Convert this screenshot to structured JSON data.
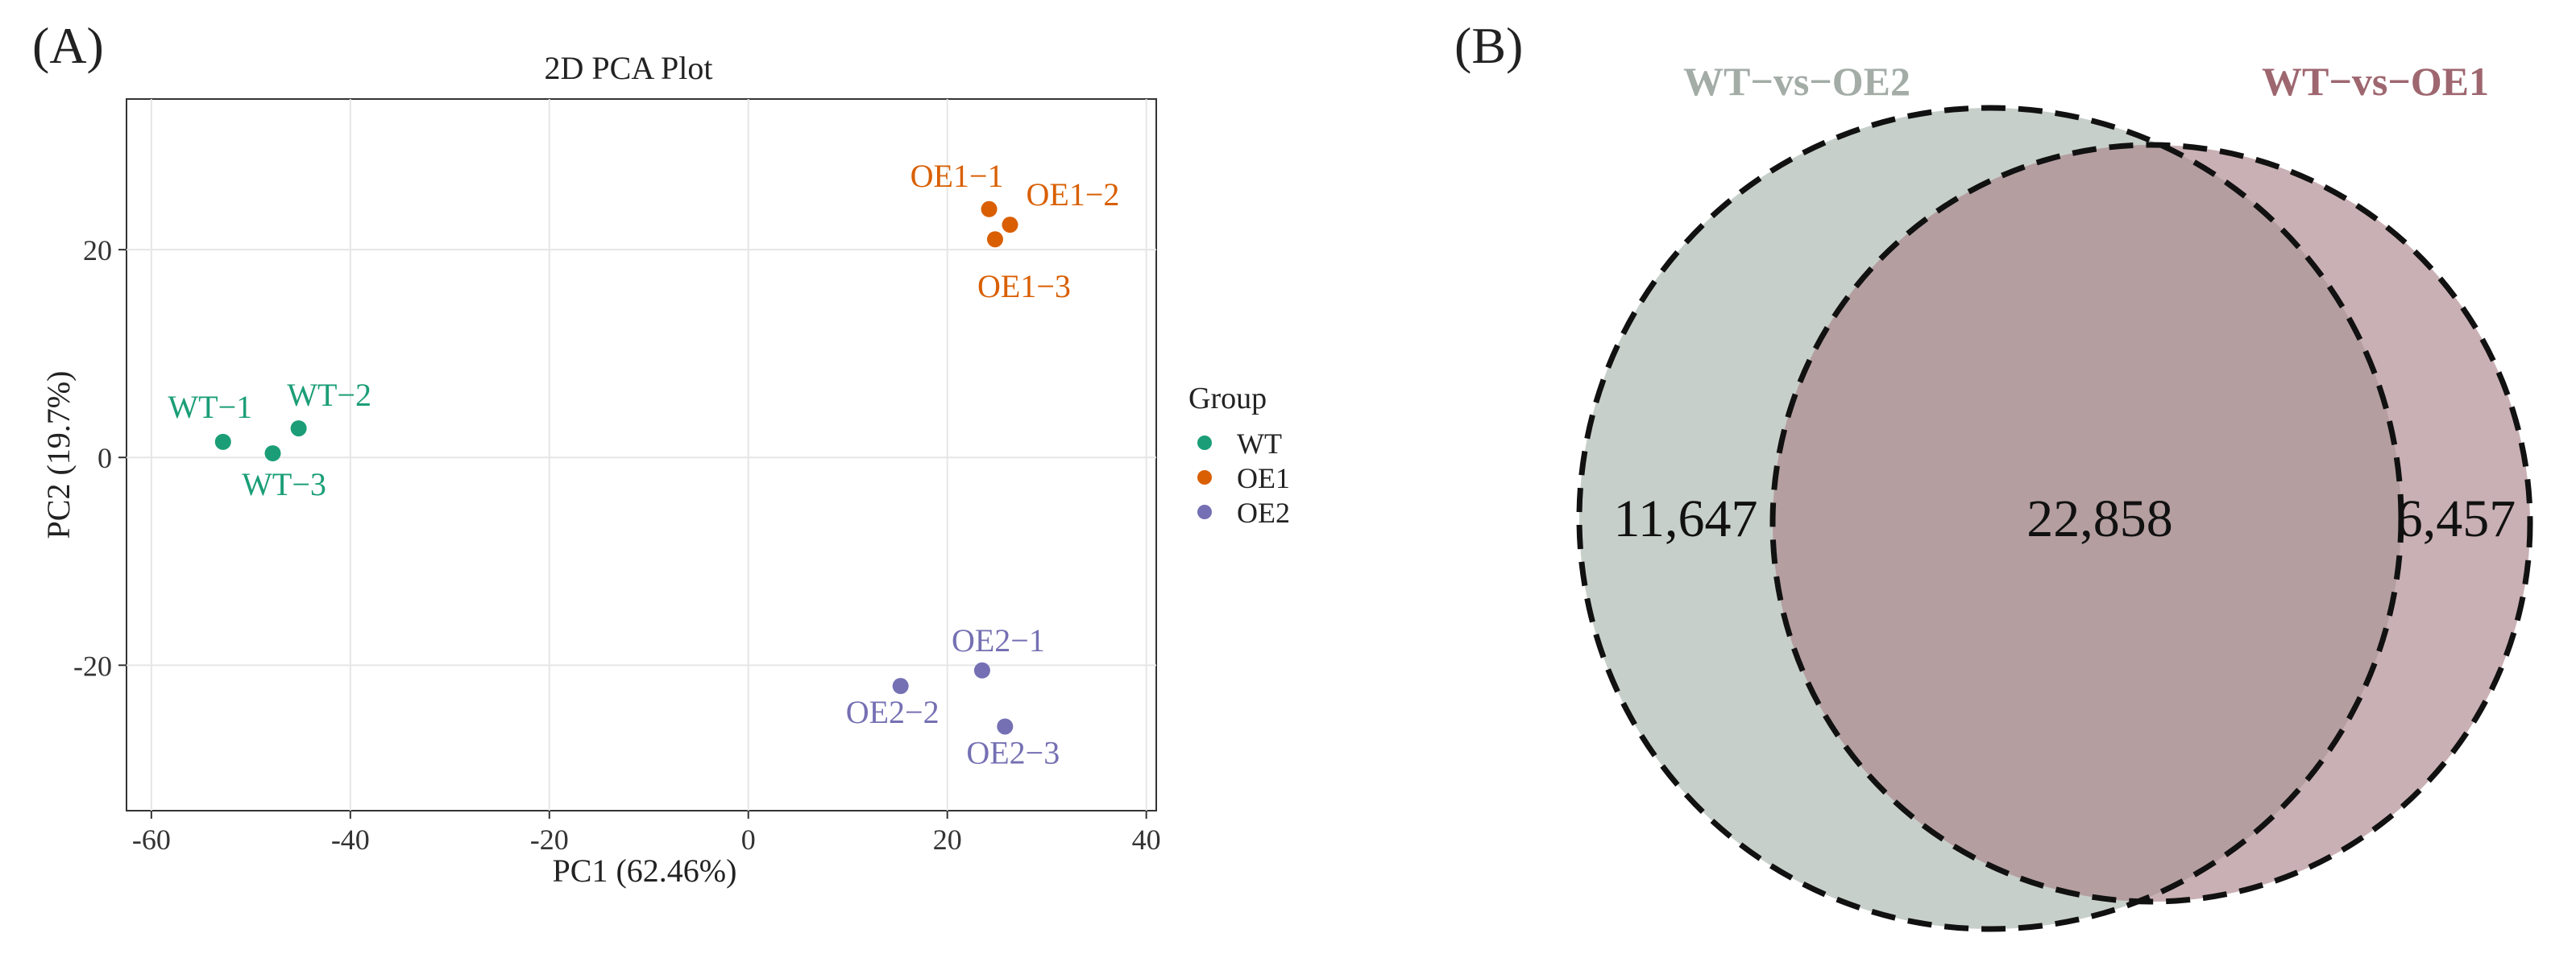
{
  "panels": {
    "a_label": "(A)",
    "b_label": "(B)"
  },
  "colors": {
    "WT": "#1b9e77",
    "OE1": "#d95f02",
    "OE2": "#7570b3",
    "venn_left_fill": "#b2bdb6",
    "venn_right_fill": "#a87f86",
    "venn_overlap_fill": "#ac9898",
    "venn_left_label": "#a3aca6",
    "venn_right_label": "#9e6770"
  },
  "chart_data": [
    {
      "type": "scatter",
      "title": "2D PCA Plot",
      "xlabel": "PC1 (62.46%)",
      "ylabel": "PC2 (19.7%)",
      "xlim": [
        -62.5,
        41.0
      ],
      "ylim": [
        -34.0,
        34.5
      ],
      "xticks": [
        -60,
        -40,
        -20,
        0,
        20,
        40
      ],
      "yticks": [
        -20,
        0,
        20
      ],
      "grid": true,
      "legend": {
        "title": "Group",
        "placement": "right",
        "entries": [
          "WT",
          "OE1",
          "OE2"
        ]
      },
      "series": [
        {
          "name": "WT",
          "points": [
            {
              "label": "WT−1",
              "x": -52.8,
              "y": 1.5
            },
            {
              "label": "WT−2",
              "x": -45.2,
              "y": 2.8
            },
            {
              "label": "WT−3",
              "x": -47.8,
              "y": 0.4
            }
          ]
        },
        {
          "name": "OE1",
          "points": [
            {
              "label": "OE1−1",
              "x": 24.2,
              "y": 23.9
            },
            {
              "label": "OE1−2",
              "x": 26.3,
              "y": 22.4
            },
            {
              "label": "OE1−3",
              "x": 24.8,
              "y": 21.0
            }
          ]
        },
        {
          "name": "OE2",
          "points": [
            {
              "label": "OE2−1",
              "x": 23.5,
              "y": -20.5
            },
            {
              "label": "OE2−2",
              "x": 15.3,
              "y": -22.0
            },
            {
              "label": "OE2−3",
              "x": 25.8,
              "y": -25.9
            }
          ]
        }
      ]
    },
    {
      "type": "venn",
      "sets": [
        {
          "name": "WT−vs−OE2",
          "only_count": "11,647"
        },
        {
          "name": "WT−vs−OE1",
          "only_count": "6,457"
        }
      ],
      "intersection": "22,858"
    }
  ]
}
